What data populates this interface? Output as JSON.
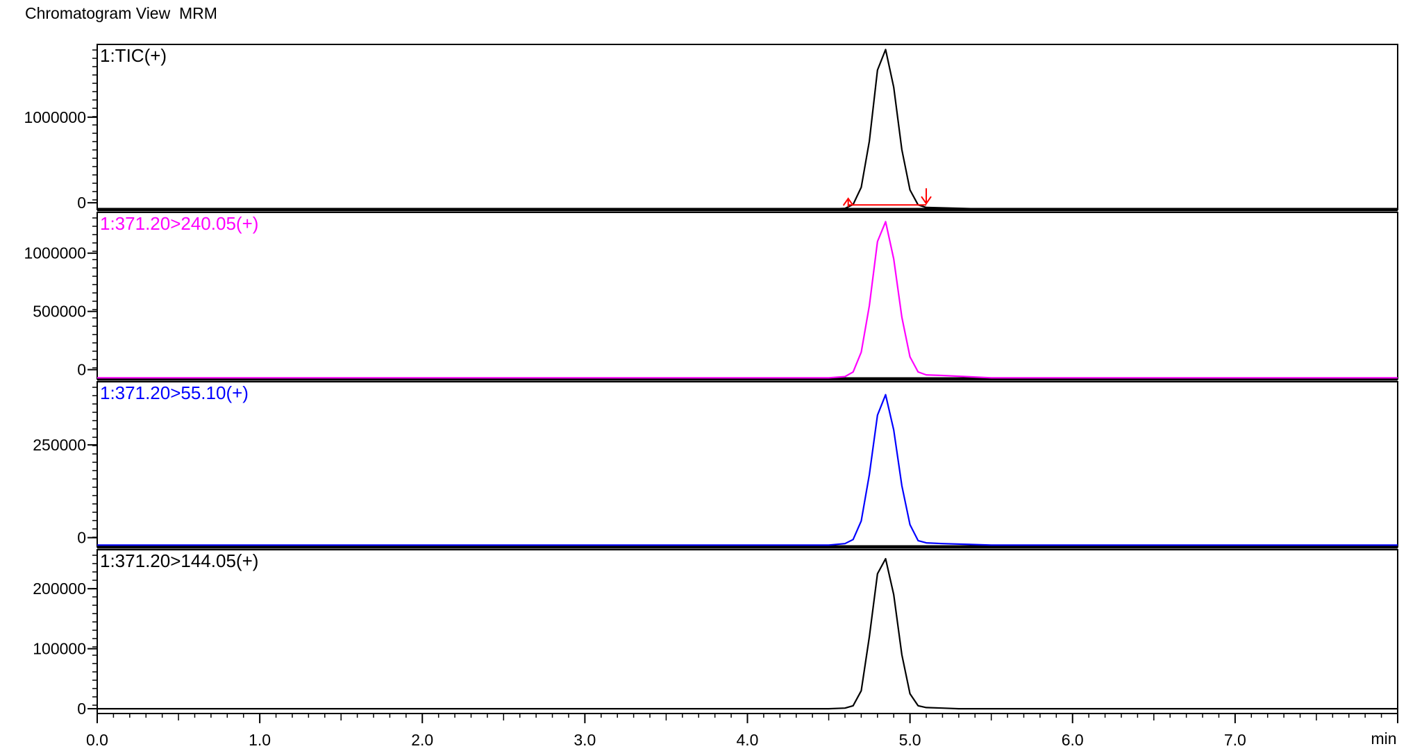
{
  "window": {
    "title": "Chromatogram View  MRM"
  },
  "chart_data": {
    "type": "line",
    "x_unit": "min",
    "x_ticks": [
      "0.0",
      "1.0",
      "2.0",
      "3.0",
      "4.0",
      "5.0",
      "6.0",
      "7.0"
    ],
    "xlim": [
      0.0,
      8.0
    ],
    "panes": [
      {
        "label": "1:TIC(+)",
        "color": "#000000",
        "ylim": [
          -80000,
          1850000
        ],
        "y_ticks": [
          {
            "label": "1000000",
            "value": 1000000
          },
          {
            "label": "0",
            "value": 0
          }
        ],
        "series": {
          "x": [
            0.0,
            4.5,
            4.6,
            4.65,
            4.7,
            4.75,
            4.8,
            4.85,
            4.9,
            4.95,
            5.0,
            5.05,
            5.1,
            5.2,
            5.5,
            8.0
          ],
          "y": [
            -75000,
            -75000,
            -65000,
            -20000,
            180000,
            720000,
            1550000,
            1790000,
            1350000,
            620000,
            150000,
            -25000,
            -55000,
            -60000,
            -75000,
            -75000
          ]
        },
        "integration": {
          "color": "#ff0000",
          "baseline_x": [
            4.62,
            5.1
          ],
          "start_x": 4.62,
          "end_x": 5.1
        }
      },
      {
        "label": "1:371.20>240.05(+)",
        "color": "#ff00ff",
        "ylim": [
          -80000,
          1350000
        ],
        "y_ticks": [
          {
            "label": "1000000",
            "value": 1000000
          },
          {
            "label": "500000",
            "value": 500000
          },
          {
            "label": "0",
            "value": 0
          }
        ],
        "series": {
          "x": [
            0.0,
            4.5,
            4.6,
            4.65,
            4.7,
            4.75,
            4.8,
            4.85,
            4.9,
            4.95,
            5.0,
            5.05,
            5.1,
            5.2,
            5.5,
            8.0
          ],
          "y": [
            -70000,
            -70000,
            -60000,
            -20000,
            150000,
            550000,
            1100000,
            1270000,
            950000,
            450000,
            110000,
            -20000,
            -45000,
            -50000,
            -70000,
            -70000
          ]
        }
      },
      {
        "label": "1:371.20>55.10(+)",
        "color": "#0000ff",
        "ylim": [
          -25000,
          420000
        ],
        "y_ticks": [
          {
            "label": "250000",
            "value": 250000
          },
          {
            "label": "0",
            "value": 0
          }
        ],
        "series": {
          "x": [
            0.0,
            4.5,
            4.6,
            4.65,
            4.7,
            4.75,
            4.8,
            4.85,
            4.9,
            4.95,
            5.0,
            5.05,
            5.1,
            5.2,
            5.5,
            8.0
          ],
          "y": [
            -20000,
            -20000,
            -16000,
            -5000,
            45000,
            170000,
            330000,
            385000,
            290000,
            140000,
            35000,
            -8000,
            -14000,
            -16000,
            -20000,
            -20000
          ]
        }
      },
      {
        "label": "1:371.20>144.05(+)",
        "color": "#000000",
        "ylim": [
          -8000,
          265000
        ],
        "y_ticks": [
          {
            "label": "200000",
            "value": 200000
          },
          {
            "label": "100000",
            "value": 100000
          },
          {
            "label": "0",
            "value": 0
          }
        ],
        "series": {
          "x": [
            0.0,
            4.5,
            4.6,
            4.65,
            4.7,
            4.75,
            4.8,
            4.85,
            4.9,
            4.95,
            5.0,
            5.05,
            5.1,
            5.2,
            5.3,
            8.0
          ],
          "y": [
            0,
            0,
            1000,
            5000,
            30000,
            120000,
            225000,
            250000,
            190000,
            90000,
            25000,
            5000,
            2000,
            1000,
            0,
            0
          ]
        }
      }
    ]
  }
}
